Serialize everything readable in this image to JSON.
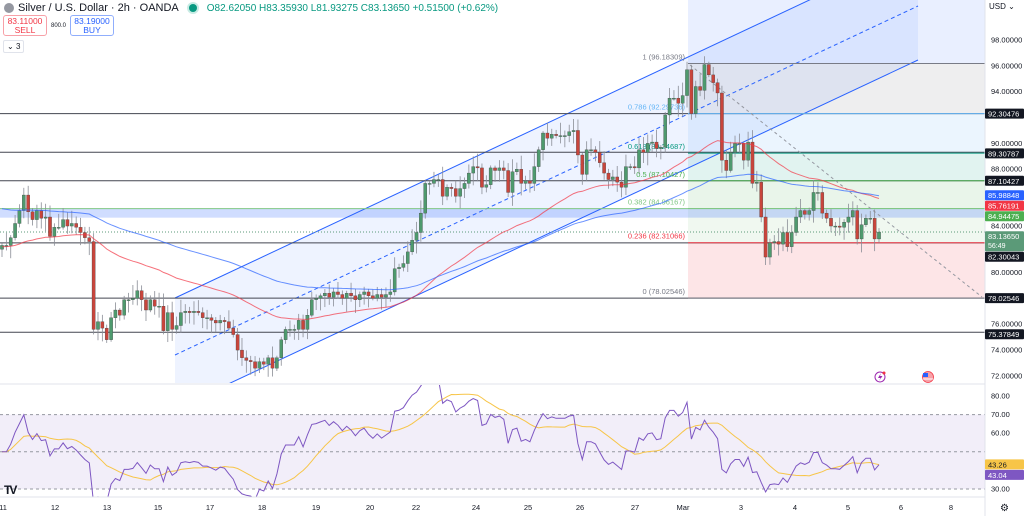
{
  "header": {
    "symbol": "Silver / U.S. Dollar · 2h · OANDA",
    "ohlc": "O82.62050 H83.35930 L81.93275 C83.13650 +0.51500 (+0.62%)"
  },
  "trade": {
    "sell_price": "83.11000",
    "sell_label": "SELL",
    "spread": "800.0",
    "buy_price": "83.19000",
    "buy_label": "BUY"
  },
  "indicators_toggle": "3",
  "currency": "USD",
  "colors": {
    "up": "#4e9a6e",
    "down": "#c8453c",
    "ma_fast": "#f23645",
    "ma_slow": "#2962ff",
    "rsi": "#7e57c2",
    "rsi_ma": "#f7c548",
    "channel": "#2962ff"
  },
  "chart_data": [
    {
      "type": "candlestick",
      "title": "Silver / U.S. Dollar · 2h · OANDA",
      "ylim": [
        71,
        100
      ],
      "x_tick_labels": [
        "11",
        "12",
        "13",
        "15",
        "17",
        "18",
        "19",
        "20",
        "22",
        "24",
        "25",
        "26",
        "27",
        "Mar",
        "3",
        "4",
        "5",
        "6",
        "8"
      ],
      "y_tick_labels": [
        "98.00000",
        "96.00000",
        "94.00000",
        "90.00000",
        "88.00000",
        "84.00000",
        "80.00000",
        "76.00000",
        "74.00000",
        "72.00000"
      ],
      "close": [
        82.1,
        82.1,
        82.7,
        83.8,
        84.8,
        86.0,
        84.7,
        84.1,
        84.8,
        84.2,
        84.3,
        82.8,
        83.5,
        83.5,
        84.1,
        83.6,
        83.8,
        83.5,
        83.1,
        82.7,
        82.4,
        75.6,
        76.2,
        75.7,
        74.8,
        76.5,
        77.1,
        76.7,
        77.9,
        77.9,
        78.0,
        78.6,
        77.9,
        77.1,
        77.9,
        77.4,
        77.4,
        75.5,
        76.9,
        75.6,
        75.9,
        76.9,
        77.0,
        76.9,
        77.0,
        76.9,
        76.5,
        76.5,
        76.3,
        76.1,
        76.3,
        76.2,
        75.7,
        75.2,
        74.0,
        73.4,
        73.2,
        73.1,
        72.6,
        73.1,
        72.9,
        73.4,
        72.6,
        73.4,
        74.8,
        75.6,
        75.6,
        75.6,
        76.3,
        75.6,
        76.7,
        77.9,
        78.0,
        78.2,
        78.4,
        78.1,
        78.5,
        78.3,
        78.0,
        78.4,
        78.2,
        77.9,
        78.3,
        78.5,
        78.2,
        78.0,
        78.3,
        78.1,
        78.3,
        78.5,
        80.3,
        80.4,
        80.7,
        81.6,
        82.5,
        83.1,
        84.6,
        86.9,
        86.9,
        87.2,
        87.2,
        85.9,
        86.6,
        86.5,
        85.9,
        86.5,
        86.9,
        87.7,
        88.2,
        88.1,
        86.6,
        86.8,
        88.1,
        87.9,
        88.1,
        87.9,
        86.2,
        87.8,
        88.0,
        86.9,
        87.1,
        86.9,
        88.2,
        89.5,
        90.8,
        90.4,
        90.7,
        90.6,
        90.6,
        90.6,
        90.9,
        91.0,
        89.1,
        87.6,
        89.5,
        89.5,
        89.3,
        88.5,
        87.7,
        87.2,
        87.4,
        87.0,
        86.6,
        88.2,
        88.2,
        88.1,
        89.5,
        89.3,
        90.0,
        90.1,
        89.6,
        89.7,
        92.2,
        93.5,
        93.5,
        93.1,
        93.7,
        95.7,
        92.3,
        94.4,
        94.1,
        96.1,
        95.3,
        94.7,
        93.9,
        88.7,
        87.9,
        89.3,
        90.0,
        90.0,
        88.7,
        90.1,
        86.9,
        87.0,
        84.3,
        81.2,
        82.3,
        82.4,
        82.2,
        83.1,
        82.0,
        83.1,
        84.3,
        84.8,
        84.5,
        84.8,
        86.2,
        86.2,
        84.6,
        84.2,
        83.6,
        83.6,
        83.5,
        83.9,
        84.3,
        84.8,
        82.6,
        83.7,
        84.2,
        84.2,
        82.6,
        83.1365
      ],
      "horizontal_levels": [
        92.30476,
        89.30787,
        87.10427,
        82.30043,
        78.02546,
        75.37849
      ],
      "support_zone": [
        84.25,
        84.94475
      ],
      "current_price": 83.1365,
      "fibonacci": [
        {
          "label": "1 (96.18309)",
          "level": 1,
          "price": 96.18309,
          "color": "#787b86"
        },
        {
          "label": "0.786 (92.29736)",
          "level": 0.786,
          "price": 92.29736,
          "color": "#64b5f6"
        },
        {
          "label": "0.618 (89.24687)",
          "level": 0.618,
          "price": 89.24687,
          "color": "#089981"
        },
        {
          "label": "0.5 (87.10427)",
          "level": 0.5,
          "price": 87.10427,
          "color": "#4caf50"
        },
        {
          "label": "0.382 (84.96167)",
          "level": 0.382,
          "price": 84.96167,
          "color": "#81c784"
        },
        {
          "label": "0.236 (82.31066)",
          "level": 0.236,
          "price": 82.31066,
          "color": "#f23645"
        },
        {
          "label": "0 (78.02546)",
          "level": 0,
          "price": 78.02546,
          "color": "#787b86"
        }
      ],
      "price_labels": [
        {
          "text": "92.30476",
          "price": 92.30476,
          "bg": "#131722",
          "fg": "#ffffff"
        },
        {
          "text": "89.30787",
          "price": 89.30787,
          "bg": "#131722",
          "fg": "#ffffff"
        },
        {
          "text": "87.10427",
          "price": 87.10427,
          "bg": "#131722",
          "fg": "#ffffff"
        },
        {
          "text": "85.98848",
          "price": 85.98848,
          "bg": "#2962ff",
          "fg": "#ffffff"
        },
        {
          "text": "85.76191",
          "price": 85.76191,
          "bg": "#f23645",
          "fg": "#ffffff"
        },
        {
          "text": "84.94475",
          "price": 84.94475,
          "bg": "#4caf50",
          "fg": "#ffffff"
        },
        {
          "text": "83.13650",
          "sub": "56:49",
          "price": 83.1365,
          "bg": "#5b9a78",
          "fg": "#ffffff"
        },
        {
          "text": "82.30043",
          "price": 82.30043,
          "bg": "#131722",
          "fg": "#ffffff"
        },
        {
          "text": "78.02546",
          "price": 78.02546,
          "bg": "#131722",
          "fg": "#ffffff"
        },
        {
          "text": "75.37849",
          "price": 75.37849,
          "bg": "#131722",
          "fg": "#ffffff"
        }
      ]
    },
    {
      "type": "line",
      "indicator": "RSI",
      "ylim": [
        25,
        85
      ],
      "y_tick_labels": [
        "80.00",
        "70.00",
        "60.00",
        "30.00"
      ],
      "band": [
        30,
        70
      ],
      "rsi_labels": [
        {
          "text": "43.26",
          "value": 43.26,
          "bg": "#f7c548",
          "fg": "#131722"
        },
        {
          "text": "43.04",
          "value": 43.04,
          "bg": "#7e57c2",
          "fg": "#ffffff"
        }
      ]
    }
  ],
  "icons": [
    "lightning-icon",
    "us-flag-icon",
    "tradingview-logo",
    "settings-icon"
  ]
}
